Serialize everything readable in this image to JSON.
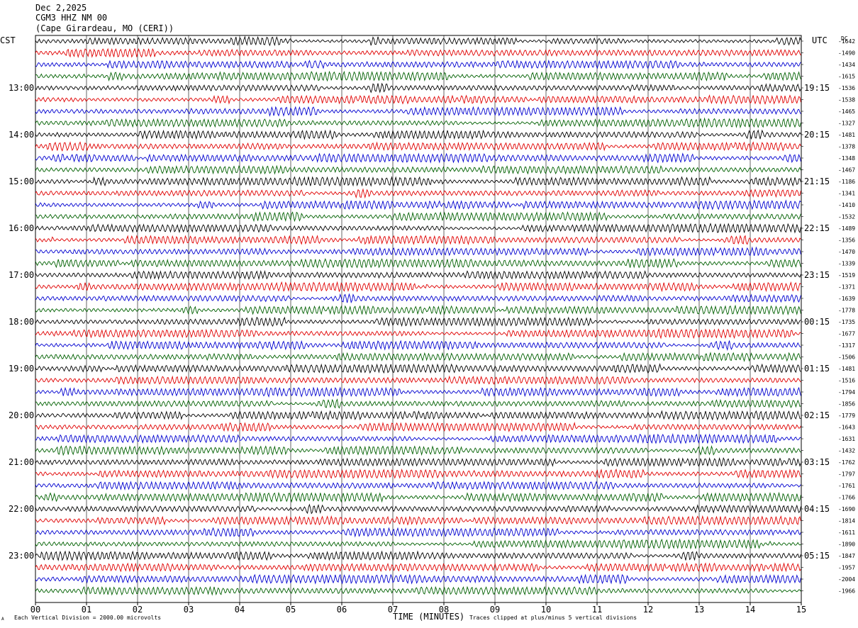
{
  "header": {
    "date": "Dec 2,2025",
    "station": "CGM3 HHZ NM 00",
    "location": "(Cape Girardeau, MO (CERI))"
  },
  "left_tz": "CST",
  "right_tz": "UTC",
  "dc_label": "DC",
  "footer": {
    "scale_note": "Each Vertical Division = 2000.00 microvolts",
    "xlabel": "TIME (MINUTES)",
    "clip_note": "Traces clipped at plus/minus 5 vertical divisions",
    "mark": "A"
  },
  "colors": {
    "trace_cycle": [
      "#000000",
      "#e00000",
      "#0000d0",
      "#006000"
    ],
    "grid": "#000000"
  },
  "chart_data": {
    "type": "line",
    "title": "",
    "xlabel": "TIME (MINUTES)",
    "ylabel": "",
    "xlim": [
      0,
      15
    ],
    "x_ticks": [
      "00",
      "01",
      "02",
      "03",
      "04",
      "05",
      "06",
      "07",
      "08",
      "09",
      "10",
      "11",
      "12",
      "13",
      "14",
      "15"
    ],
    "traces_per_hour": 4,
    "left_hour_labels": [
      "13:00",
      "14:00",
      "15:00",
      "16:00",
      "17:00",
      "18:00",
      "19:00",
      "20:00",
      "21:00",
      "22:00",
      "23:00"
    ],
    "right_hour_labels": [
      "19:15",
      "20:15",
      "21:15",
      "22:15",
      "23:15",
      "00:15",
      "01:15",
      "02:15",
      "03:15",
      "04:15",
      "05:15"
    ],
    "dc_offsets": [
      "-1642",
      "-1490",
      "-1434",
      "-1615",
      "-1536",
      "-1538",
      "-1465",
      "-1327",
      "-1481",
      "-1378",
      "-1348",
      "-1467",
      "-1186",
      "-1341",
      "-1410",
      "-1532",
      "-1489",
      "-1356",
      "-1470",
      "-1339",
      "-1519",
      "-1371",
      "-1639",
      "-1778",
      "-1735",
      "-1677",
      "-1317",
      "-1506",
      "-1481",
      "-1516",
      "-1794",
      "-1856",
      "-1779",
      "-1643",
      "-1631",
      "-1432",
      "-1762",
      "-1797",
      "-1761",
      "-1766",
      "-1690",
      "-1814",
      "-1611",
      "-1890",
      "-1847",
      "-1957",
      "-2004",
      "-1966"
    ],
    "clip_divisions": 5
  }
}
